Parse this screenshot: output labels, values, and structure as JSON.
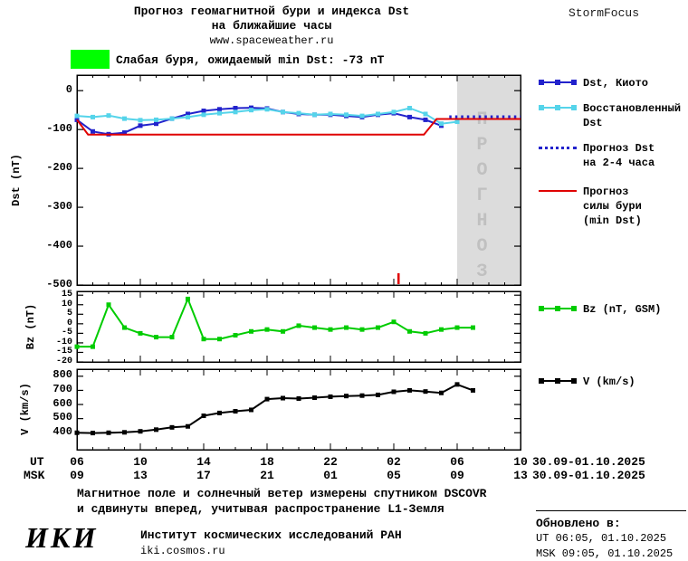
{
  "header": {
    "title_line1": "Прогноз геомагнитной бури и индекса Dst",
    "title_line2": "на ближайшие часы",
    "site": "www.spaceweather.ru",
    "brand": "StormFocus"
  },
  "alert": {
    "text": "Слабая буря, ожидаемый min Dst: -73 nT",
    "badge_color": "#00ff00"
  },
  "legend": {
    "items": [
      {
        "lines": [
          "Dst, Киото"
        ],
        "color": "#2222cc",
        "marker": "square",
        "style": "solid"
      },
      {
        "lines": [
          "Восстановленный",
          "Dst"
        ],
        "color": "#55d4ea",
        "marker": "square",
        "style": "solid"
      },
      {
        "lines": [
          "Прогноз Dst",
          "на 2-4 часа"
        ],
        "color": "#2222cc",
        "style": "dotted"
      },
      {
        "lines": [
          "Прогноз",
          "силы бури",
          "(min Dst)"
        ],
        "color": "#e00000",
        "style": "solid"
      },
      {
        "lines": [
          "Bz (nT, GSM)"
        ],
        "color": "#00cc00",
        "marker": "square",
        "style": "solid"
      },
      {
        "lines": [
          "V (km/s)"
        ],
        "color": "#000000",
        "marker": "square",
        "style": "solid"
      }
    ]
  },
  "axis": {
    "ut_label": "UT",
    "msk_label": "MSK",
    "ut_ticks": [
      "06",
      "10",
      "14",
      "18",
      "22",
      "02",
      "06",
      "10"
    ],
    "msk_ticks": [
      "09",
      "13",
      "17",
      "21",
      "01",
      "05",
      "09",
      "13"
    ],
    "ut_date_range": "30.09-01.10.2025",
    "msk_date_range": "30.09-01.10.2025"
  },
  "footer": {
    "note_line1": "Магнитное поле и солнечный ветер измерены спутником DSCOVR",
    "note_line2": "и сдвинуты вперед, учитывая распространение L1-Земля",
    "org_logo": "ИКИ",
    "org_name": "Институт космических исследований РАН",
    "org_site": "iki.cosmos.ru",
    "updated_label": "Обновлено в:",
    "updated_ut": "UT  06:05, 01.10.2025",
    "updated_msk": "MSK 09:05, 01.10.2025"
  },
  "chart_data": [
    {
      "id": "dst",
      "type": "line",
      "ylabel": "Dst (nT)",
      "ylim": [
        40,
        -500
      ],
      "yticks": [
        0,
        -100,
        -200,
        -300,
        -400,
        -500
      ],
      "xlim": [
        6,
        34
      ],
      "x_units": "hours UT from 30.09.2025 00:00",
      "forecast_region": {
        "from": 30,
        "to": 34,
        "label": "ПРОГНОЗ"
      },
      "onset_marker": {
        "x": 26.3,
        "color": "#e00000"
      },
      "series": [
        {
          "id": "dst-kyoto",
          "name": "Dst, Киото",
          "color": "#2222cc",
          "marker": "square",
          "x": [
            6,
            7,
            8,
            9,
            10,
            11,
            12,
            13,
            14,
            15,
            16,
            17,
            18,
            19,
            20,
            21,
            22,
            23,
            24,
            25,
            26,
            27,
            28,
            29
          ],
          "y": [
            -75,
            -105,
            -112,
            -108,
            -90,
            -85,
            -72,
            -60,
            -52,
            -48,
            -45,
            -44,
            -46,
            -55,
            -60,
            -62,
            -62,
            -65,
            -68,
            -62,
            -58,
            -68,
            -75,
            -90
          ]
        },
        {
          "id": "dst-restored",
          "name": "Восстановленный Dst",
          "color": "#55d4ea",
          "marker": "square",
          "x": [
            6,
            7,
            8,
            9,
            10,
            11,
            12,
            13,
            14,
            15,
            16,
            17,
            18,
            19,
            20,
            21,
            22,
            23,
            24,
            25,
            26,
            27,
            28,
            29,
            30
          ],
          "y": [
            -65,
            -68,
            -64,
            -72,
            -76,
            -75,
            -72,
            -68,
            -62,
            -58,
            -55,
            -50,
            -48,
            -55,
            -58,
            -62,
            -60,
            -62,
            -65,
            -60,
            -55,
            -45,
            -60,
            -85,
            -80
          ]
        },
        {
          "id": "dst-forecast-2-4h",
          "name": "Прогноз Dst на 2-4 часа",
          "color": "#2222cc",
          "style": "dotted",
          "x": [
            29.5,
            34
          ],
          "y": [
            -67,
            -67
          ]
        },
        {
          "id": "storm-strength-forecast",
          "name": "Прогноз силы бури (min Dst)",
          "color": "#e00000",
          "x": [
            6,
            6.7,
            27.9,
            28.7,
            34
          ],
          "y": [
            -75,
            -113,
            -113,
            -73,
            -73
          ]
        }
      ]
    },
    {
      "id": "bz",
      "type": "line",
      "ylabel": "Bz (nT)",
      "ylim": [
        17,
        -20
      ],
      "yticks": [
        15,
        10,
        5,
        0,
        -5,
        -10,
        -15,
        -20
      ],
      "xlim": [
        6,
        34
      ],
      "series": [
        {
          "id": "bz-gsm",
          "name": "Bz (nT, GSM)",
          "color": "#00cc00",
          "marker": "square",
          "x": [
            6,
            7,
            8,
            9,
            10,
            11,
            12,
            13,
            14,
            15,
            16,
            17,
            18,
            19,
            20,
            21,
            22,
            23,
            24,
            25,
            26,
            27,
            28,
            29,
            30,
            31
          ],
          "y": [
            -12,
            -12,
            10,
            -2,
            -5,
            -7,
            -7,
            13,
            -8,
            -8,
            -6,
            -4,
            -3,
            -4,
            -1,
            -2,
            -3,
            -2,
            -3,
            -2,
            1,
            -4,
            -5,
            -3,
            -2,
            -2
          ]
        }
      ]
    },
    {
      "id": "v",
      "type": "line",
      "ylabel": "V (km/s)",
      "ylim": [
        850,
        280
      ],
      "yticks": [
        800,
        700,
        600,
        500,
        400
      ],
      "xlim": [
        6,
        34
      ],
      "series": [
        {
          "id": "solar-wind-speed",
          "name": "V (km/s)",
          "color": "#000000",
          "marker": "square",
          "x": [
            6,
            7,
            8,
            9,
            10,
            11,
            12,
            13,
            14,
            15,
            16,
            17,
            18,
            19,
            20,
            21,
            22,
            23,
            24,
            25,
            26,
            27,
            28,
            29,
            30,
            31
          ],
          "y": [
            400,
            398,
            400,
            403,
            410,
            422,
            438,
            445,
            520,
            540,
            552,
            562,
            638,
            645,
            642,
            648,
            655,
            660,
            663,
            668,
            690,
            700,
            692,
            682,
            742,
            700
          ]
        }
      ]
    }
  ]
}
